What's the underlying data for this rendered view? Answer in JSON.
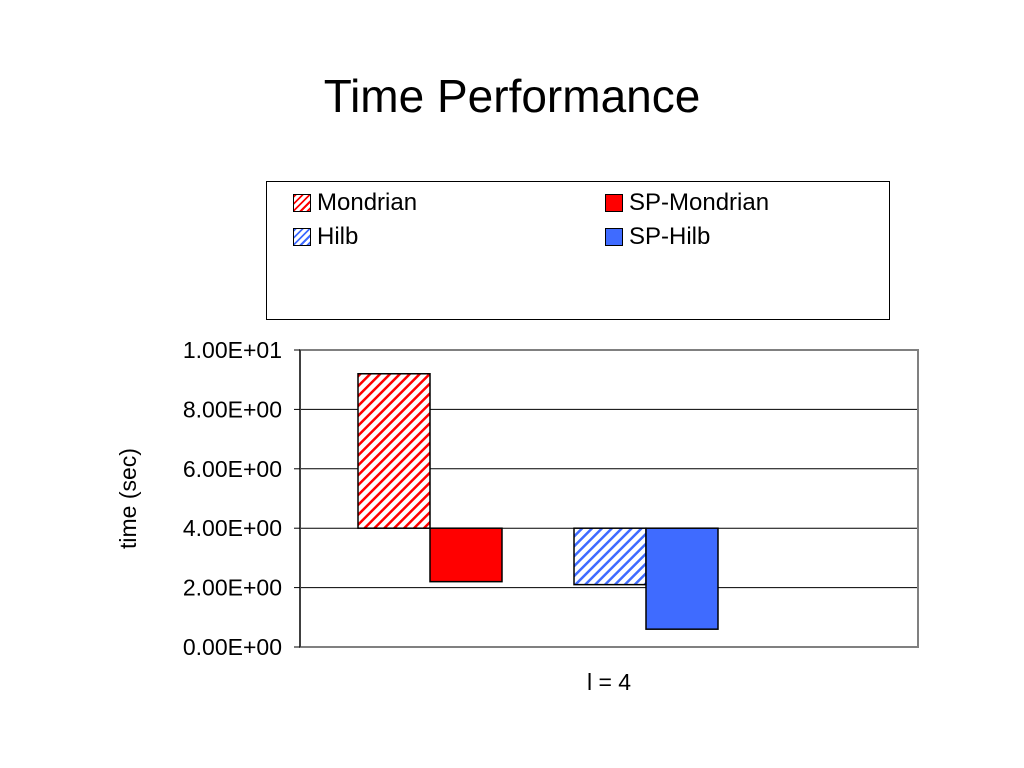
{
  "page": {
    "title": "Time Performance"
  },
  "colors": {
    "mondrian": "#ff0000",
    "sp_mondrian": "#ff0000",
    "hilb": "#3f6bff",
    "sp_hilb": "#3f6bff",
    "grid": "#000000",
    "frame": "#808080"
  },
  "chart_data": {
    "type": "bar",
    "title": "",
    "xlabel": "",
    "ylabel": "time (sec)",
    "categories": [
      "l = 4"
    ],
    "ylim": [
      0,
      10
    ],
    "y_ticks": [
      "0.00E+00",
      "2.00E+00",
      "4.00E+00",
      "6.00E+00",
      "8.00E+00",
      "1.00E+01"
    ],
    "y_tick_values": [
      0,
      2,
      4,
      6,
      8,
      10
    ],
    "baseline": 4,
    "grid": true,
    "legend_position": "top",
    "series": [
      {
        "name": "Mondrian",
        "values": [
          9.2
        ],
        "pattern": "hatched",
        "color": "#ff0000"
      },
      {
        "name": "SP-Mondrian",
        "values": [
          2.2
        ],
        "pattern": "solid",
        "color": "#ff0000"
      },
      {
        "name": "Hilb",
        "values": [
          2.1
        ],
        "pattern": "hatched",
        "color": "#3f6bff"
      },
      {
        "name": "SP-Hilb",
        "values": [
          0.6
        ],
        "pattern": "solid",
        "color": "#3f6bff"
      }
    ]
  }
}
